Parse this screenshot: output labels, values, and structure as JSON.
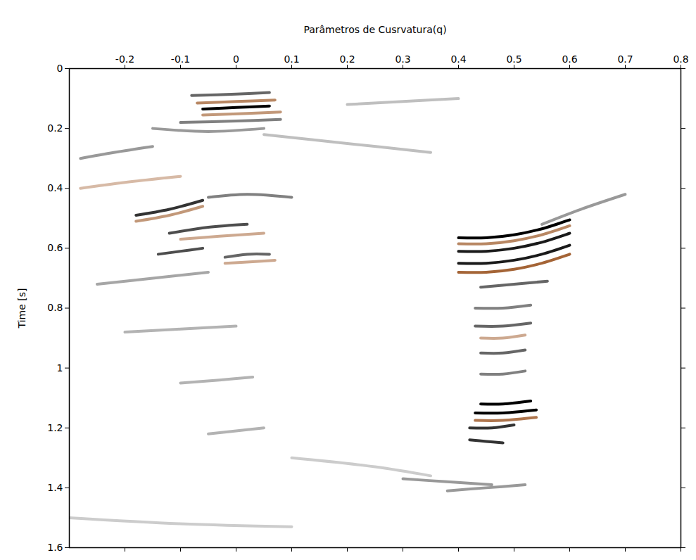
{
  "chart_data": {
    "type": "seismic",
    "xlabel": "Parâmetros de Cusrvatura(q)",
    "ylabel": "Time [s]",
    "xlim": [
      -0.3,
      0.8
    ],
    "xticks": [
      -0.2,
      -0.1,
      0,
      0.1,
      0.2,
      0.3,
      0.4,
      0.5,
      0.6,
      0.7,
      0.8
    ],
    "ylim": [
      0,
      1.6
    ],
    "yticks": [
      0,
      0.2,
      0.4,
      0.6,
      0.8,
      1,
      1.2,
      1.4,
      1.6
    ],
    "zlim": [
      -1,
      1
    ],
    "colors": [
      "#9a5320",
      "#ffffff",
      "#000000"
    ],
    "events": [
      {
        "amplitude": 1,
        "q": [
          -0.06,
          0,
          0.06
        ],
        "t": [
          0.135,
          0.13,
          0.125
        ]
      },
      {
        "amplitude": -0.7,
        "q": [
          -0.07,
          0,
          0.07
        ],
        "t": [
          0.115,
          0.11,
          0.105
        ]
      },
      {
        "amplitude": 0.6,
        "q": [
          -0.08,
          0,
          0.06
        ],
        "t": [
          0.09,
          0.085,
          0.08
        ]
      },
      {
        "amplitude": -0.6,
        "q": [
          -0.06,
          0.02,
          0.08
        ],
        "t": [
          0.155,
          0.15,
          0.145
        ]
      },
      {
        "amplitude": 0.5,
        "q": [
          -0.1,
          0,
          0.08
        ],
        "t": [
          0.18,
          0.175,
          0.17
        ]
      },
      {
        "amplitude": 0.4,
        "q": [
          -0.15,
          -0.05,
          0.05
        ],
        "t": [
          0.2,
          0.21,
          0.2
        ]
      },
      {
        "amplitude": 0.8,
        "q": [
          -0.18,
          -0.12,
          -0.06
        ],
        "t": [
          0.49,
          0.47,
          0.44
        ]
      },
      {
        "amplitude": -0.6,
        "q": [
          -0.18,
          -0.12,
          -0.06
        ],
        "t": [
          0.51,
          0.49,
          0.46
        ]
      },
      {
        "amplitude": 0.7,
        "q": [
          -0.12,
          -0.05,
          0.02
        ],
        "t": [
          0.55,
          0.53,
          0.52
        ]
      },
      {
        "amplitude": -0.5,
        "q": [
          -0.1,
          -0.03,
          0.05
        ],
        "t": [
          0.57,
          0.56,
          0.55
        ]
      },
      {
        "amplitude": 0.7,
        "q": [
          -0.14,
          -0.1,
          -0.06
        ],
        "t": [
          0.62,
          0.61,
          0.6
        ]
      },
      {
        "amplitude": 0.6,
        "q": [
          -0.02,
          0.02,
          0.06
        ],
        "t": [
          0.63,
          0.62,
          0.62
        ]
      },
      {
        "amplitude": -0.5,
        "q": [
          -0.02,
          0.03,
          0.07
        ],
        "t": [
          0.65,
          0.645,
          0.64
        ]
      },
      {
        "amplitude": 0.5,
        "q": [
          -0.05,
          0.02,
          0.1
        ],
        "t": [
          0.43,
          0.42,
          0.43
        ]
      },
      {
        "amplitude": -0.4,
        "q": [
          -0.28,
          -0.2,
          -0.1
        ],
        "t": [
          0.4,
          0.38,
          0.36
        ]
      },
      {
        "amplitude": 0.4,
        "q": [
          -0.28,
          -0.22,
          -0.15
        ],
        "t": [
          0.3,
          0.28,
          0.26
        ]
      },
      {
        "amplitude": 0.35,
        "q": [
          -0.25,
          -0.15,
          -0.05
        ],
        "t": [
          0.72,
          0.7,
          0.68
        ]
      },
      {
        "amplitude": 0.3,
        "q": [
          -0.2,
          -0.1,
          0
        ],
        "t": [
          0.88,
          0.87,
          0.86
        ]
      },
      {
        "amplitude": 0.3,
        "q": [
          -0.1,
          -0.03,
          0.03
        ],
        "t": [
          1.05,
          1.04,
          1.03
        ]
      },
      {
        "amplitude": 0.3,
        "q": [
          -0.05,
          0,
          0.05
        ],
        "t": [
          1.22,
          1.21,
          1.2
        ]
      },
      {
        "amplitude": 1,
        "q": [
          0.4,
          0.45,
          0.5,
          0.55,
          0.6
        ],
        "t": [
          0.565,
          0.565,
          0.555,
          0.535,
          0.505
        ]
      },
      {
        "amplitude": -0.7,
        "q": [
          0.4,
          0.45,
          0.5,
          0.55,
          0.6
        ],
        "t": [
          0.585,
          0.585,
          0.575,
          0.555,
          0.525
        ]
      },
      {
        "amplitude": 0.9,
        "q": [
          0.4,
          0.45,
          0.5,
          0.55,
          0.6
        ],
        "t": [
          0.61,
          0.61,
          0.6,
          0.58,
          0.55
        ]
      },
      {
        "amplitude": 0.9,
        "q": [
          0.4,
          0.45,
          0.5,
          0.55,
          0.6
        ],
        "t": [
          0.65,
          0.65,
          0.64,
          0.62,
          0.59
        ]
      },
      {
        "amplitude": -0.9,
        "q": [
          0.4,
          0.45,
          0.5,
          0.55,
          0.6
        ],
        "t": [
          0.68,
          0.68,
          0.67,
          0.65,
          0.62
        ]
      },
      {
        "amplitude": 0.4,
        "q": [
          0.55,
          0.62,
          0.7
        ],
        "t": [
          0.52,
          0.47,
          0.42
        ]
      },
      {
        "amplitude": 0.6,
        "q": [
          0.44,
          0.5,
          0.56
        ],
        "t": [
          0.73,
          0.72,
          0.71
        ]
      },
      {
        "amplitude": 0.5,
        "q": [
          0.43,
          0.48,
          0.53
        ],
        "t": [
          0.8,
          0.8,
          0.79
        ]
      },
      {
        "amplitude": 0.6,
        "q": [
          0.43,
          0.48,
          0.53
        ],
        "t": [
          0.86,
          0.86,
          0.85
        ]
      },
      {
        "amplitude": -0.5,
        "q": [
          0.44,
          0.48,
          0.52
        ],
        "t": [
          0.9,
          0.9,
          0.89
        ]
      },
      {
        "amplitude": 0.6,
        "q": [
          0.44,
          0.48,
          0.52
        ],
        "t": [
          0.95,
          0.95,
          0.94
        ]
      },
      {
        "amplitude": 0.5,
        "q": [
          0.44,
          0.48,
          0.52
        ],
        "t": [
          1.02,
          1.02,
          1.01
        ]
      },
      {
        "amplitude": 1,
        "q": [
          0.44,
          0.48,
          0.53
        ],
        "t": [
          1.12,
          1.12,
          1.11
        ]
      },
      {
        "amplitude": 1,
        "q": [
          0.43,
          0.48,
          0.54
        ],
        "t": [
          1.15,
          1.15,
          1.14
        ]
      },
      {
        "amplitude": -0.8,
        "q": [
          0.43,
          0.48,
          0.54
        ],
        "t": [
          1.175,
          1.175,
          1.165
        ]
      },
      {
        "amplitude": 0.8,
        "q": [
          0.42,
          0.46,
          0.5
        ],
        "t": [
          1.2,
          1.2,
          1.19
        ]
      },
      {
        "amplitude": 0.8,
        "q": [
          0.42,
          0.45,
          0.48
        ],
        "t": [
          1.24,
          1.245,
          1.25
        ]
      },
      {
        "amplitude": 0.4,
        "q": [
          0.3,
          0.38,
          0.46
        ],
        "t": [
          1.37,
          1.38,
          1.39
        ]
      },
      {
        "amplitude": 0.4,
        "q": [
          0.38,
          0.45,
          0.52
        ],
        "t": [
          1.41,
          1.4,
          1.39
        ]
      },
      {
        "amplitude": 0.25,
        "q": [
          0.2,
          0.3,
          0.4
        ],
        "t": [
          0.12,
          0.11,
          0.1
        ]
      },
      {
        "amplitude": 0.2,
        "q": [
          -0.3,
          -0.1,
          0.1
        ],
        "t": [
          1.5,
          1.52,
          1.53
        ]
      },
      {
        "amplitude": 0.25,
        "q": [
          0.05,
          0.2,
          0.35
        ],
        "t": [
          0.22,
          0.25,
          0.28
        ]
      },
      {
        "amplitude": 0.2,
        "q": [
          0.1,
          0.25,
          0.35
        ],
        "t": [
          1.3,
          1.33,
          1.36
        ]
      }
    ]
  }
}
